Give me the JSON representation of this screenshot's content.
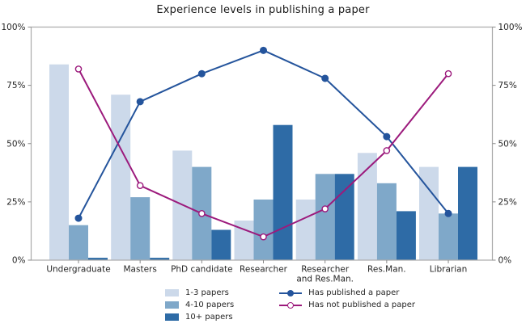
{
  "chart_data": {
    "type": "bar",
    "title": "Experience levels in publishing a paper",
    "categories": [
      "Undergraduate",
      "Masters",
      "PhD candidate",
      "Researcher",
      "Researcher\nand Res.Man.",
      "Res.Man.",
      "Librarian"
    ],
    "bar_series": [
      {
        "name": "1-3 papers",
        "color": "#ccd9ea",
        "values": [
          84,
          71,
          47,
          17,
          26,
          46,
          40
        ]
      },
      {
        "name": "4-10 papers",
        "color": "#7fa8c9",
        "values": [
          15,
          27,
          40,
          26,
          37,
          33,
          20
        ]
      },
      {
        "name": "10+ papers",
        "color": "#2e6ba6",
        "values": [
          1,
          1,
          13,
          58,
          37,
          21,
          40
        ]
      }
    ],
    "line_series": [
      {
        "name": "Has published a paper",
        "color": "#24549c",
        "marker": "filled-circle",
        "values": [
          18,
          68,
          80,
          90,
          78,
          53,
          20
        ]
      },
      {
        "name": "Has not published a paper",
        "color": "#9c1a7c",
        "marker": "open-circle",
        "values": [
          82,
          32,
          20,
          10,
          22,
          47,
          80
        ]
      }
    ],
    "ylim": [
      0,
      100
    ],
    "y_tick_values": [
      0,
      25,
      50,
      75,
      100
    ],
    "y_ticks": [
      "0%",
      "25%",
      "50%",
      "75%",
      "100%"
    ],
    "y_axis_both_sides": true,
    "grid": false,
    "legend_position": "bottom-center",
    "axis_color": "#ababab",
    "tick_color": "#8a8a8a",
    "label_color": "#262626",
    "background_color": "#ffffff"
  }
}
